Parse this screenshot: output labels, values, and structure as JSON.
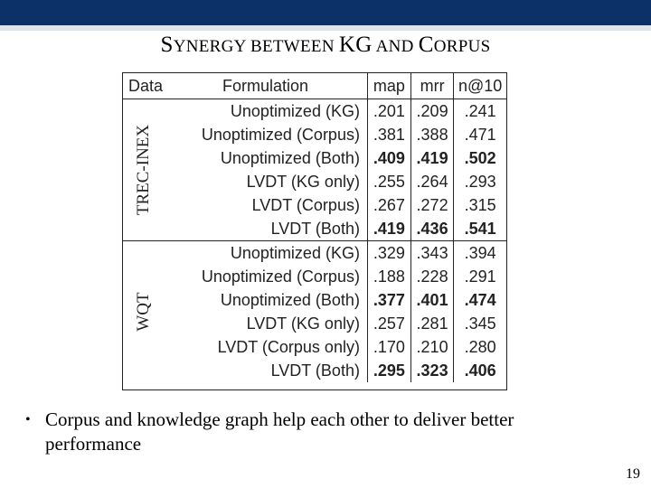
{
  "title": {
    "s": "S",
    "ynergy": "YNERGY BETWEEN ",
    "kg": "KG",
    "and": " AND ",
    "c": "C",
    "orpus": "ORPUS"
  },
  "table": {
    "headers": [
      "Data",
      "Formulation",
      "map",
      "mrr",
      "n@10"
    ],
    "groups": [
      {
        "name": "TREC-INEX",
        "rows": [
          {
            "formulation": "Unoptimized (KG)",
            "map": ".201",
            "mrr": ".209",
            "n10": ".241",
            "bold": false
          },
          {
            "formulation": "Unoptimized (Corpus)",
            "map": ".381",
            "mrr": ".388",
            "n10": ".471",
            "bold": false
          },
          {
            "formulation": "Unoptimized (Both)",
            "map": ".409",
            "mrr": ".419",
            "n10": ".502",
            "bold": true
          },
          {
            "formulation": "LVDT (KG only)",
            "map": ".255",
            "mrr": ".264",
            "n10": ".293",
            "bold": false
          },
          {
            "formulation": "LVDT (Corpus)",
            "map": ".267",
            "mrr": ".272",
            "n10": ".315",
            "bold": false
          },
          {
            "formulation": "LVDT (Both)",
            "map": ".419",
            "mrr": ".436",
            "n10": ".541",
            "bold": true
          }
        ]
      },
      {
        "name": "WQT",
        "rows": [
          {
            "formulation": "Unoptimized (KG)",
            "map": ".329",
            "mrr": ".343",
            "n10": ".394",
            "bold": false
          },
          {
            "formulation": "Unoptimized (Corpus)",
            "map": ".188",
            "mrr": ".228",
            "n10": ".291",
            "bold": false
          },
          {
            "formulation": "Unoptimized (Both)",
            "map": ".377",
            "mrr": ".401",
            "n10": ".474",
            "bold": true
          },
          {
            "formulation": "LVDT (KG only)",
            "map": ".257",
            "mrr": ".281",
            "n10": ".345",
            "bold": false
          },
          {
            "formulation": "LVDT (Corpus only)",
            "map": ".170",
            "mrr": ".210",
            "n10": ".280",
            "bold": false
          },
          {
            "formulation": "LVDT (Both)",
            "map": ".295",
            "mrr": ".323",
            "n10": ".406",
            "bold": true
          }
        ]
      }
    ]
  },
  "bullet": {
    "symbol": "•",
    "text": "Corpus and knowledge graph help each other to deliver better performance"
  },
  "page_number": "19",
  "colors": {
    "top_bar": "#0b3168"
  }
}
